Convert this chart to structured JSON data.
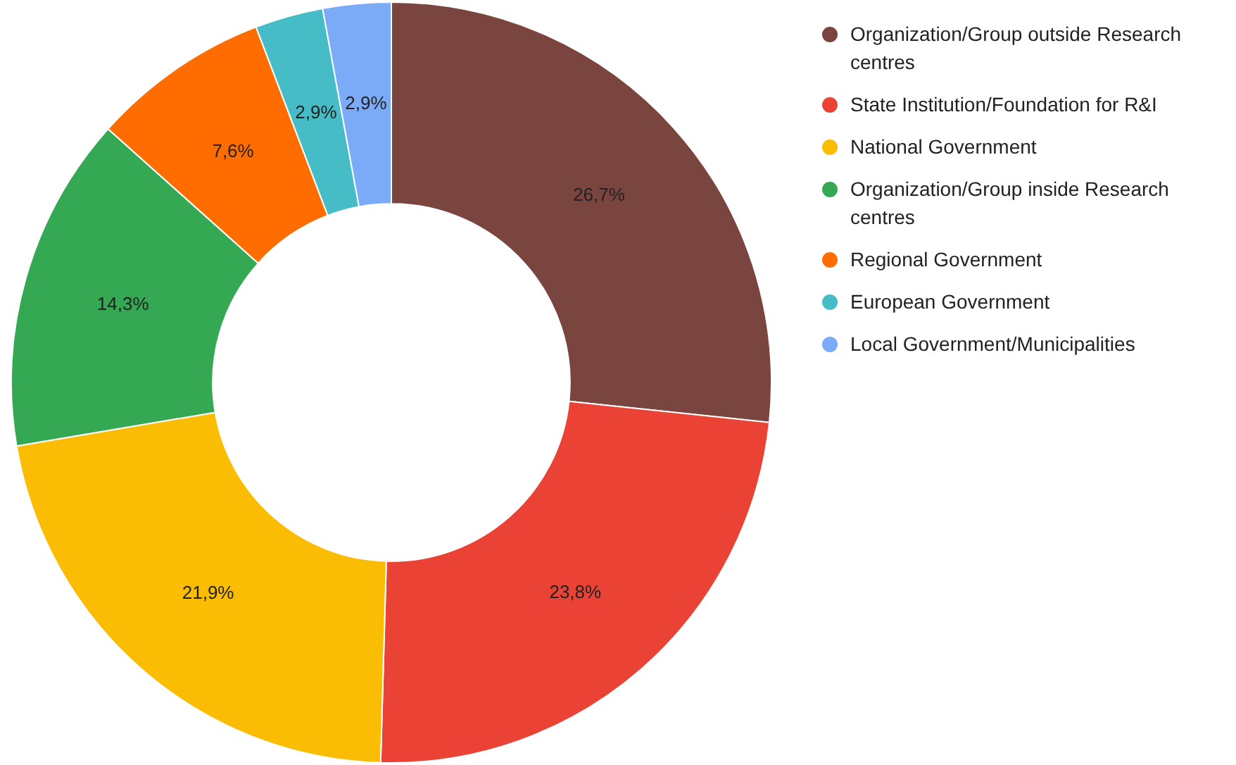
{
  "chart_data": {
    "type": "donut",
    "categories": [
      "Organization/Group outside Research centres",
      "State Institution/Foundation for R&I",
      "National Government",
      "Organization/Group inside Research centres",
      "Regional Government",
      "European Government",
      "Local Government/Municipalities"
    ],
    "values": [
      26.7,
      23.8,
      21.9,
      14.3,
      7.6,
      2.9,
      2.9
    ],
    "colors": [
      "#7a453e",
      "#ea4335",
      "#fbbc04",
      "#34a853",
      "#ff6d01",
      "#46bdc6",
      "#7baaf7"
    ],
    "value_labels": [
      "26,7%",
      "23,8%",
      "21,9%",
      "14,3%",
      "7,6%",
      "2,9%",
      "2,9%"
    ],
    "legend": "right"
  }
}
